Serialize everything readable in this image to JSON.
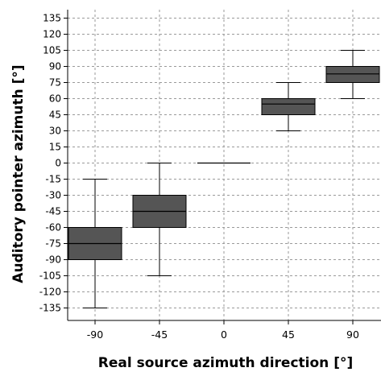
{
  "chart_data": {
    "type": "boxplot",
    "title": "",
    "xlabel": "Real source azimuth direction [°]",
    "ylabel": "Auditory pointer azimuth [°]",
    "ylim": [
      -145,
      145
    ],
    "y_ticks": [
      135,
      120,
      105,
      90,
      75,
      60,
      45,
      30,
      15,
      0,
      -15,
      -30,
      -45,
      -60,
      -75,
      -90,
      -105,
      -120,
      -135
    ],
    "categories": [
      "-90",
      "-45",
      "0",
      "45",
      "90"
    ],
    "grid": true,
    "colors": {
      "box_fill": "#555555",
      "line": "#000000",
      "grid": "#9a9a9a",
      "background": "#ffffff"
    },
    "boxes": [
      {
        "category": "-90",
        "whisker_low": -135,
        "q1": -90,
        "median": -75,
        "q3": -60,
        "whisker_high": -15
      },
      {
        "category": "-45",
        "whisker_low": -105,
        "q1": -60,
        "median": -45,
        "q3": -30,
        "whisker_high": 0
      },
      {
        "category": "0",
        "whisker_low": 0,
        "q1": 0,
        "median": 0,
        "q3": 0,
        "whisker_high": 0
      },
      {
        "category": "45",
        "whisker_low": 30,
        "q1": 45,
        "median": 55,
        "q3": 60,
        "whisker_high": 75
      },
      {
        "category": "90",
        "whisker_low": 60,
        "q1": 75,
        "median": 83,
        "q3": 90,
        "whisker_high": 105
      }
    ]
  }
}
